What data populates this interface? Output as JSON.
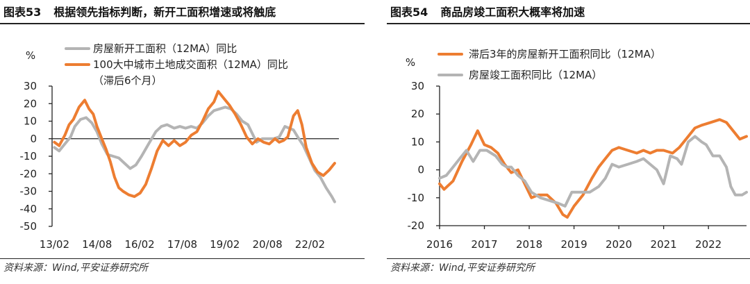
{
  "source_text": "资料来源：Wind,平安证券研究所",
  "colors": {
    "orange": "#ed7d31",
    "grey": "#b4b4b4"
  },
  "chart_data": [
    {
      "id": "fig53",
      "figure_no": "图表53",
      "title": "根据领先指标判断，新开工面积增速或将触底",
      "type": "line",
      "ylabel": "%",
      "ylim": [
        -50,
        30
      ],
      "yticks": [
        30,
        20,
        10,
        0,
        -10,
        -20,
        -30,
        -40,
        -50
      ],
      "ytick_labels": [
        "30",
        "20",
        "10",
        "0",
        "-10",
        "-20",
        "-30",
        "-40",
        "-50"
      ],
      "x_range": [
        2013.0,
        2023.1
      ],
      "xticks": [
        2013.0833,
        2014.5833,
        2016.0833,
        2017.5833,
        2019.0833,
        2020.5833,
        2022.0833
      ],
      "xtick_labels": [
        "13/02",
        "14/08",
        "16/02",
        "17/08",
        "19/02",
        "20/08",
        "22/02"
      ],
      "grid": false,
      "legend": "top",
      "series": [
        {
          "name": "房屋新开工面积（12MA）同比",
          "color": "#b4b4b4",
          "points": [
            [
              2013.08,
              -5
            ],
            [
              2013.25,
              -7
            ],
            [
              2013.45,
              -3
            ],
            [
              2013.65,
              1
            ],
            [
              2013.8,
              7
            ],
            [
              2014.0,
              11
            ],
            [
              2014.2,
              12
            ],
            [
              2014.4,
              9
            ],
            [
              2014.58,
              4
            ],
            [
              2014.75,
              -3
            ],
            [
              2014.95,
              -9
            ],
            [
              2015.15,
              -10
            ],
            [
              2015.35,
              -11
            ],
            [
              2015.55,
              -14
            ],
            [
              2015.75,
              -17
            ],
            [
              2015.95,
              -15
            ],
            [
              2016.15,
              -10
            ],
            [
              2016.4,
              -3
            ],
            [
              2016.65,
              4
            ],
            [
              2016.85,
              7
            ],
            [
              2017.05,
              8
            ],
            [
              2017.3,
              6
            ],
            [
              2017.5,
              7
            ],
            [
              2017.7,
              6
            ],
            [
              2017.9,
              7
            ],
            [
              2018.1,
              6
            ],
            [
              2018.3,
              9
            ],
            [
              2018.5,
              13
            ],
            [
              2018.7,
              16
            ],
            [
              2018.9,
              17
            ],
            [
              2019.1,
              18
            ],
            [
              2019.3,
              17
            ],
            [
              2019.5,
              14
            ],
            [
              2019.7,
              10
            ],
            [
              2019.9,
              8
            ],
            [
              2020.05,
              3
            ],
            [
              2020.2,
              -2
            ],
            [
              2020.4,
              0
            ],
            [
              2020.6,
              0
            ],
            [
              2020.8,
              0
            ],
            [
              2021.0,
              1
            ],
            [
              2021.2,
              7
            ],
            [
              2021.35,
              6
            ],
            [
              2021.5,
              5
            ],
            [
              2021.65,
              1
            ],
            [
              2021.85,
              -4
            ],
            [
              2022.05,
              -11
            ],
            [
              2022.25,
              -18
            ],
            [
              2022.45,
              -22
            ],
            [
              2022.65,
              -28
            ],
            [
              2022.85,
              -33
            ],
            [
              2022.95,
              -36
            ]
          ]
        },
        {
          "name": "100大中城市土地成交面积（12MA）同比（滞后6个月）",
          "color": "#ed7d31",
          "points": [
            [
              2013.08,
              -2
            ],
            [
              2013.25,
              -4
            ],
            [
              2013.45,
              2
            ],
            [
              2013.6,
              8
            ],
            [
              2013.75,
              11
            ],
            [
              2013.95,
              18
            ],
            [
              2014.15,
              22
            ],
            [
              2014.3,
              17
            ],
            [
              2014.45,
              14
            ],
            [
              2014.58,
              7
            ],
            [
              2014.75,
              0
            ],
            [
              2014.9,
              -6
            ],
            [
              2015.05,
              -13
            ],
            [
              2015.2,
              -22
            ],
            [
              2015.35,
              -28
            ],
            [
              2015.5,
              -30
            ],
            [
              2015.7,
              -32
            ],
            [
              2015.9,
              -33
            ],
            [
              2016.1,
              -31
            ],
            [
              2016.3,
              -26
            ],
            [
              2016.5,
              -17
            ],
            [
              2016.7,
              -7
            ],
            [
              2016.9,
              -1
            ],
            [
              2017.1,
              -4
            ],
            [
              2017.3,
              -1
            ],
            [
              2017.5,
              -4
            ],
            [
              2017.7,
              -2
            ],
            [
              2017.9,
              2
            ],
            [
              2018.1,
              4
            ],
            [
              2018.3,
              10
            ],
            [
              2018.5,
              17
            ],
            [
              2018.7,
              21
            ],
            [
              2018.85,
              27
            ],
            [
              2019.05,
              23
            ],
            [
              2019.25,
              19
            ],
            [
              2019.45,
              14
            ],
            [
              2019.65,
              8
            ],
            [
              2019.85,
              1
            ],
            [
              2020.05,
              -3
            ],
            [
              2020.25,
              0
            ],
            [
              2020.45,
              -2
            ],
            [
              2020.65,
              -3
            ],
            [
              2020.85,
              0
            ],
            [
              2021.0,
              -2
            ],
            [
              2021.15,
              -1
            ],
            [
              2021.3,
              1
            ],
            [
              2021.5,
              13
            ],
            [
              2021.65,
              16
            ],
            [
              2021.8,
              8
            ],
            [
              2021.95,
              -5
            ],
            [
              2022.15,
              -14
            ],
            [
              2022.35,
              -19
            ],
            [
              2022.55,
              -21
            ],
            [
              2022.75,
              -18
            ],
            [
              2022.95,
              -14
            ]
          ]
        }
      ]
    },
    {
      "id": "fig54",
      "figure_no": "图表54",
      "title": "商品房竣工面积大概率将加速",
      "type": "line",
      "ylabel": "%",
      "ylim": [
        -20,
        30
      ],
      "yticks": [
        30,
        20,
        10,
        0,
        -10,
        -20
      ],
      "ytick_labels": [
        "30",
        "20",
        "10",
        "0",
        "-10",
        "-20"
      ],
      "x_range": [
        2016.0,
        2022.85
      ],
      "xticks": [
        2016,
        2017,
        2018,
        2019,
        2020,
        2021,
        2022
      ],
      "xtick_labels": [
        "2016",
        "2017",
        "2018",
        "2019",
        "2020",
        "2021",
        "2022"
      ],
      "grid": false,
      "legend": "top",
      "series": [
        {
          "name": "滞后3年的房屋新开工面积同比（12MA）",
          "color": "#ed7d31",
          "points": [
            [
              2016.0,
              -5
            ],
            [
              2016.1,
              -7
            ],
            [
              2016.3,
              -4
            ],
            [
              2016.5,
              3
            ],
            [
              2016.7,
              9
            ],
            [
              2016.85,
              14
            ],
            [
              2017.0,
              9
            ],
            [
              2017.15,
              8
            ],
            [
              2017.3,
              6
            ],
            [
              2017.45,
              2
            ],
            [
              2017.6,
              -1
            ],
            [
              2017.75,
              0
            ],
            [
              2017.9,
              -5
            ],
            [
              2018.05,
              -10
            ],
            [
              2018.2,
              -9
            ],
            [
              2018.4,
              -9
            ],
            [
              2018.6,
              -12
            ],
            [
              2018.75,
              -16
            ],
            [
              2018.85,
              -17
            ],
            [
              2019.0,
              -13
            ],
            [
              2019.2,
              -9
            ],
            [
              2019.4,
              -3
            ],
            [
              2019.55,
              1
            ],
            [
              2019.7,
              4
            ],
            [
              2019.85,
              7
            ],
            [
              2020.0,
              8
            ],
            [
              2020.2,
              7
            ],
            [
              2020.4,
              6
            ],
            [
              2020.55,
              7
            ],
            [
              2020.7,
              6
            ],
            [
              2020.85,
              7
            ],
            [
              2021.0,
              7
            ],
            [
              2021.2,
              6
            ],
            [
              2021.35,
              8
            ],
            [
              2021.5,
              11
            ],
            [
              2021.7,
              15
            ],
            [
              2021.85,
              16
            ],
            [
              2022.05,
              17
            ],
            [
              2022.25,
              18
            ],
            [
              2022.4,
              17
            ],
            [
              2022.55,
              14
            ],
            [
              2022.7,
              11
            ],
            [
              2022.85,
              12
            ]
          ]
        },
        {
          "name": "房屋竣工面积同比（12MA）",
          "color": "#b4b4b4",
          "points": [
            [
              2016.0,
              -3
            ],
            [
              2016.15,
              -2
            ],
            [
              2016.3,
              1
            ],
            [
              2016.45,
              4
            ],
            [
              2016.6,
              7
            ],
            [
              2016.75,
              3
            ],
            [
              2016.9,
              7
            ],
            [
              2017.05,
              7
            ],
            [
              2017.25,
              5
            ],
            [
              2017.4,
              2
            ],
            [
              2017.5,
              1
            ],
            [
              2017.6,
              1
            ],
            [
              2017.75,
              -2
            ],
            [
              2017.9,
              -4
            ],
            [
              2018.05,
              -8
            ],
            [
              2018.25,
              -10
            ],
            [
              2018.45,
              -11
            ],
            [
              2018.65,
              -12
            ],
            [
              2018.8,
              -13
            ],
            [
              2018.95,
              -8
            ],
            [
              2019.15,
              -8
            ],
            [
              2019.35,
              -8
            ],
            [
              2019.55,
              -6
            ],
            [
              2019.7,
              -3
            ],
            [
              2019.85,
              2
            ],
            [
              2020.0,
              1
            ],
            [
              2020.2,
              2
            ],
            [
              2020.4,
              3
            ],
            [
              2020.55,
              4
            ],
            [
              2020.7,
              2
            ],
            [
              2020.85,
              0
            ],
            [
              2021.0,
              -5
            ],
            [
              2021.15,
              5
            ],
            [
              2021.3,
              4
            ],
            [
              2021.4,
              2
            ],
            [
              2021.55,
              10
            ],
            [
              2021.7,
              12
            ],
            [
              2021.85,
              10
            ],
            [
              2021.95,
              9
            ],
            [
              2022.1,
              5
            ],
            [
              2022.25,
              5
            ],
            [
              2022.4,
              1
            ],
            [
              2022.5,
              -6
            ],
            [
              2022.6,
              -9
            ],
            [
              2022.75,
              -9
            ],
            [
              2022.85,
              -8
            ]
          ]
        }
      ]
    }
  ]
}
